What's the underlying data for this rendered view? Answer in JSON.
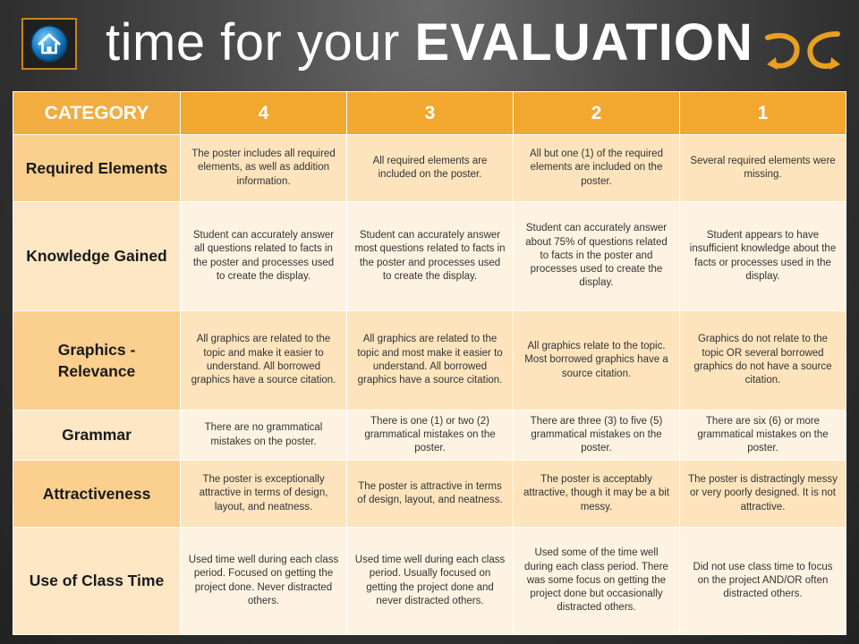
{
  "title": {
    "prefix": "time for your",
    "emphasis": "EVALUATION"
  },
  "colors": {
    "header": "#f2a72f",
    "accent": "#c8841c"
  },
  "icons": {
    "home": "home-icon",
    "arrows": "curved-arrows-icon"
  },
  "table": {
    "headers": [
      "CATEGORY",
      "4",
      "3",
      "2",
      "1"
    ],
    "rows": [
      {
        "category": "Required Elements",
        "cells": [
          "The poster includes all required elements, as well as addition information.",
          "All required elements are included on the poster.",
          "All but one (1) of the required elements are included on the poster.",
          "Several required elements were missing."
        ]
      },
      {
        "category": "Knowledge Gained",
        "cells": [
          "Student can accurately answer all questions related to facts in the poster and processes used to create the display.",
          "Student can accurately answer most questions related to facts in the poster and processes used to create the display.",
          "Student can accurately answer about 75% of questions related to facts in the poster and processes used to create the display.",
          "Student appears to have insufficient knowledge about the facts or processes used in the display."
        ]
      },
      {
        "category": "Graphics - Relevance",
        "cells": [
          "All graphics are related to the topic and make it easier to understand. All borrowed graphics have a source citation.",
          "All graphics are related to the topic and most make it easier to understand. All borrowed graphics have a source citation.",
          "All graphics relate to the topic. Most borrowed graphics have a source citation.",
          "Graphics do not relate to the topic OR several borrowed graphics do not have a source citation."
        ]
      },
      {
        "category": "Grammar",
        "cells": [
          "There are no grammatical mistakes on the poster.",
          "There is one (1) or two (2) grammatical mistakes on the poster.",
          "There are three (3) to five (5) grammatical mistakes on the poster.",
          "There are six (6) or more grammatical mistakes on the poster."
        ]
      },
      {
        "category": "Attractiveness",
        "cells": [
          "The poster is exceptionally attractive in terms of design, layout, and neatness.",
          "The poster is attractive in terms of design, layout, and neatness.",
          "The poster is acceptably attractive, though it may be a bit messy.",
          "The poster is distractingly messy or very poorly designed. It is not attractive."
        ]
      },
      {
        "category": "Use of Class Time",
        "cells": [
          "Used time well during each class period. Focused on getting the project done. Never distracted others.",
          "Used time well during each class period. Usually focused on getting the project done and never distracted others.",
          "Used some of the time well during each class period. There was some focus on getting the project done but occasionally distracted others.",
          "Did not use class time to focus on the project AND/OR often distracted others."
        ]
      }
    ]
  }
}
